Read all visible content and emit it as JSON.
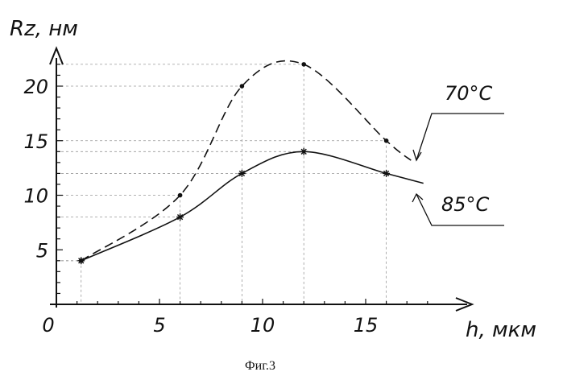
{
  "chart_data": {
    "type": "line",
    "ylabel": "Rz, нм",
    "xlabel": "h, мкм",
    "caption": "Фиг.3",
    "origin_label": "0",
    "x_ticks": [
      "5",
      "10",
      "15"
    ],
    "y_ticks": [
      "5",
      "10",
      "15",
      "20"
    ],
    "xlim": [
      0,
      19
    ],
    "ylim": [
      0,
      23.5
    ],
    "grid": "dashed guides",
    "series": [
      {
        "name": "70°C",
        "style": "dashed",
        "marker": "dot",
        "x": [
          1.2,
          6,
          9,
          12,
          16
        ],
        "y": [
          4,
          10,
          20,
          22,
          15
        ],
        "end_x": 17.2,
        "end_y": 13.2
      },
      {
        "name": "85°C",
        "style": "solid",
        "marker": "star",
        "x": [
          1.2,
          6,
          9,
          12,
          16
        ],
        "y": [
          4,
          8,
          12,
          14,
          12
        ],
        "end_x": 17.8,
        "end_y": 11.1
      }
    ]
  }
}
